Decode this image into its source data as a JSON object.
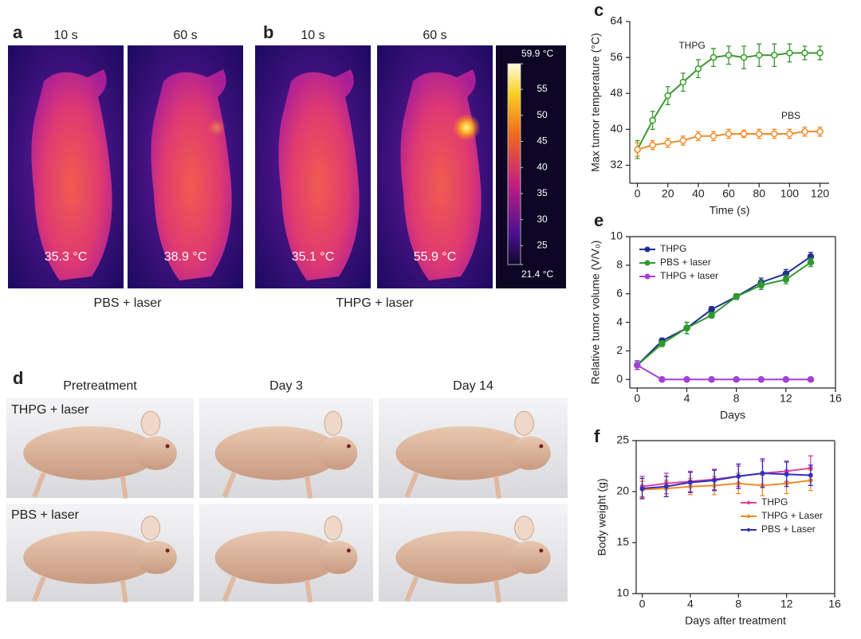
{
  "panel_labels": [
    "a",
    "b",
    "c",
    "d",
    "e",
    "f"
  ],
  "thermal": {
    "panels": [
      {
        "caption": "PBS + laser",
        "images": [
          {
            "time": "10 s",
            "temp": "35.3 °C"
          },
          {
            "time": "60 s",
            "temp": "38.9 °C"
          }
        ]
      },
      {
        "caption": "THPG + laser",
        "images": [
          {
            "time": "10 s",
            "temp": "35.1 °C"
          },
          {
            "time": "60 s",
            "temp": "55.9 °C"
          }
        ]
      }
    ],
    "colorbar": {
      "lim": [
        21.4,
        59.9
      ],
      "ticks": [
        {
          "value": 59.9,
          "label": "59.9 °C"
        },
        55,
        50,
        45,
        40,
        35,
        30,
        25,
        {
          "value": 21.4,
          "label": "21.4 °C"
        }
      ]
    }
  },
  "photos": {
    "columns": [
      "Pretreatment",
      "Day 3",
      "Day 14"
    ],
    "rows": [
      "THPG + laser",
      "PBS + laser"
    ]
  },
  "chart_data": [
    {
      "type": "line",
      "xlabel": "Time (s)",
      "ylabel": "Max tumor temperature (°C)",
      "x": [
        0,
        10,
        20,
        30,
        40,
        50,
        60,
        70,
        80,
        90,
        100,
        110,
        120
      ],
      "series": [
        {
          "name": "THPG",
          "color": "#3a9a2e",
          "values": [
            35.5,
            42,
            47.5,
            50.5,
            53.5,
            56,
            56.5,
            56,
            56.5,
            56.5,
            57,
            57,
            57
          ],
          "errors": [
            2,
            2,
            2,
            2,
            2,
            2,
            2,
            2.5,
            2.5,
            2.5,
            2,
            1.5,
            1.5
          ]
        },
        {
          "name": "PBS",
          "color": "#f28c28",
          "values": [
            35.5,
            36.5,
            37,
            37.5,
            38.5,
            38.5,
            39,
            39,
            39,
            39,
            39,
            39.5,
            39.5
          ],
          "errors": [
            1.5,
            1,
            1,
            1,
            1,
            1,
            1,
            0.8,
            1,
            1,
            1,
            1,
            1
          ]
        }
      ],
      "xlim": [
        -5,
        126
      ],
      "ylim": [
        28,
        64
      ],
      "xticks": [
        0,
        20,
        40,
        60,
        80,
        100,
        120
      ],
      "yticks": [
        32,
        40,
        48,
        56,
        64
      ]
    },
    {
      "type": "line",
      "xlabel": "Days",
      "ylabel": "Relative tumor volume (V/V₀)",
      "x": [
        0,
        2,
        4,
        6,
        8,
        10,
        12,
        14
      ],
      "series": [
        {
          "name": "THPG",
          "color": "#1f2f8f",
          "values": [
            1,
            2.7,
            3.6,
            4.9,
            5.8,
            6.8,
            7.4,
            8.6
          ],
          "errors": [
            0.3,
            0.2,
            0.4,
            0.2,
            0.2,
            0.3,
            0.3,
            0.3
          ]
        },
        {
          "name": "PBS + laser",
          "color": "#2e9a2e",
          "values": [
            1,
            2.5,
            3.6,
            4.5,
            5.8,
            6.6,
            7.0,
            8.2
          ],
          "errors": [
            0.3,
            0.2,
            0.4,
            0.2,
            0.2,
            0.3,
            0.3,
            0.3
          ]
        },
        {
          "name": "THPG + laser",
          "color": "#a040d8",
          "values": [
            1,
            0,
            0,
            0,
            0,
            0,
            0,
            0
          ],
          "errors": [
            0.3,
            0,
            0,
            0,
            0,
            0,
            0,
            0
          ]
        }
      ],
      "xlim": [
        -0.6,
        16
      ],
      "ylim": [
        -0.6,
        10
      ],
      "xticks": [
        0,
        4,
        8,
        12,
        16
      ],
      "yticks": [
        0,
        2,
        4,
        6,
        8,
        10
      ],
      "legend": "upper left"
    },
    {
      "type": "line",
      "xlabel": "Days after treatment",
      "ylabel": "Body weight (g)",
      "x": [
        0,
        2,
        4,
        6,
        8,
        10,
        12,
        14
      ],
      "series": [
        {
          "name": "THPG",
          "color": "#e0409a",
          "values": [
            20.5,
            20.8,
            21,
            21.2,
            21.5,
            21.8,
            22,
            22.3
          ],
          "errors": [
            1,
            1,
            1,
            1,
            1,
            1.2,
            1,
            1.2
          ]
        },
        {
          "name": "THPG + Laser",
          "color": "#f28c28",
          "values": [
            20.2,
            20.3,
            20.5,
            20.6,
            20.8,
            20.6,
            20.8,
            21.1
          ],
          "errors": [
            0.8,
            0.8,
            0.8,
            0.9,
            1,
            1,
            1,
            1
          ]
        },
        {
          "name": "PBS + Laser",
          "color": "#3030c0",
          "values": [
            20.3,
            20.5,
            20.9,
            21.1,
            21.5,
            21.8,
            21.7,
            21.6
          ],
          "errors": [
            1,
            1,
            1,
            1,
            1.2,
            1.4,
            1.2,
            1
          ]
        }
      ],
      "xlim": [
        -0.5,
        16
      ],
      "ylim": [
        10,
        25
      ],
      "xticks": [
        0,
        4,
        8,
        12,
        16
      ],
      "yticks": [
        10,
        15,
        20,
        25
      ],
      "legend": "center right"
    }
  ]
}
